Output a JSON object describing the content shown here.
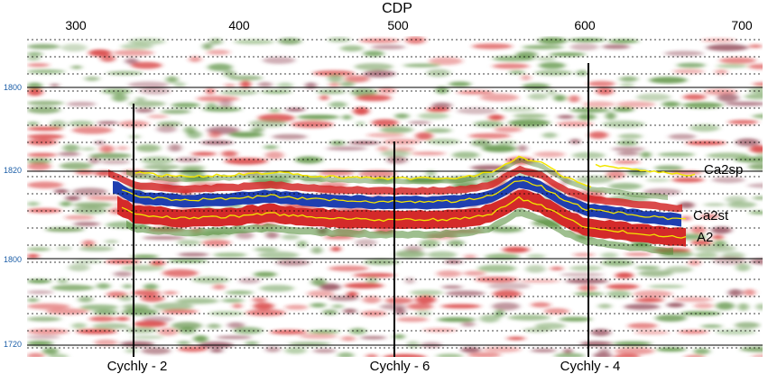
{
  "figure": {
    "axis_title": "CDP",
    "cdp_ticks": [
      "300",
      "400",
      "500",
      "600",
      "700"
    ],
    "time_labels": [
      "1800",
      "1820",
      "1800",
      "1720"
    ],
    "colors": {
      "peak": "#d42a2a",
      "trough": "#1f3fb0",
      "green": "#4f8a33",
      "horizon": "#f2e600",
      "grid": "#000000"
    }
  },
  "wells": [
    {
      "label": "Cychly - 2"
    },
    {
      "label": "Cychly - 6"
    },
    {
      "label": "Cychly - 4"
    }
  ],
  "horizons": [
    {
      "label": "Ca2sp"
    },
    {
      "label": "Ca2st"
    },
    {
      "label": "A2"
    }
  ]
}
